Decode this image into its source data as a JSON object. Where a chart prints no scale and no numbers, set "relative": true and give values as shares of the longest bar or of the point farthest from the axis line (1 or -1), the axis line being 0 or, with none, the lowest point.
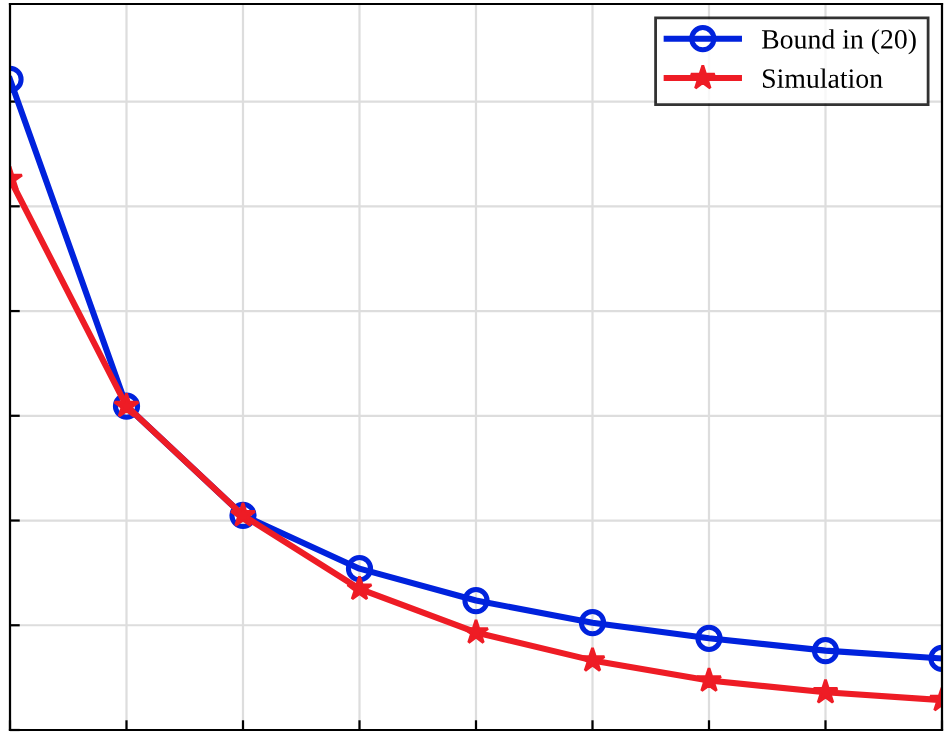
{
  "chart_data": {
    "type": "line",
    "relative": true,
    "categories": [
      null,
      null,
      null,
      null,
      null,
      null,
      null,
      null,
      null
    ],
    "series": [
      {
        "name": "Bound in (20)",
        "color": "#0022dd",
        "marker": "circle",
        "values": [
          1,
          0.498,
          0.33,
          0.248,
          0.199,
          0.165,
          0.141,
          0.122,
          0.11
        ]
      },
      {
        "name": "Simulation",
        "color": "#ee1c25",
        "marker": "star",
        "values": [
          0.847,
          0.498,
          0.33,
          0.217,
          0.15,
          0.107,
          0.076,
          0.058,
          0.046
        ]
      }
    ],
    "grid": true,
    "legend": "top right",
    "line_style": "solid"
  }
}
